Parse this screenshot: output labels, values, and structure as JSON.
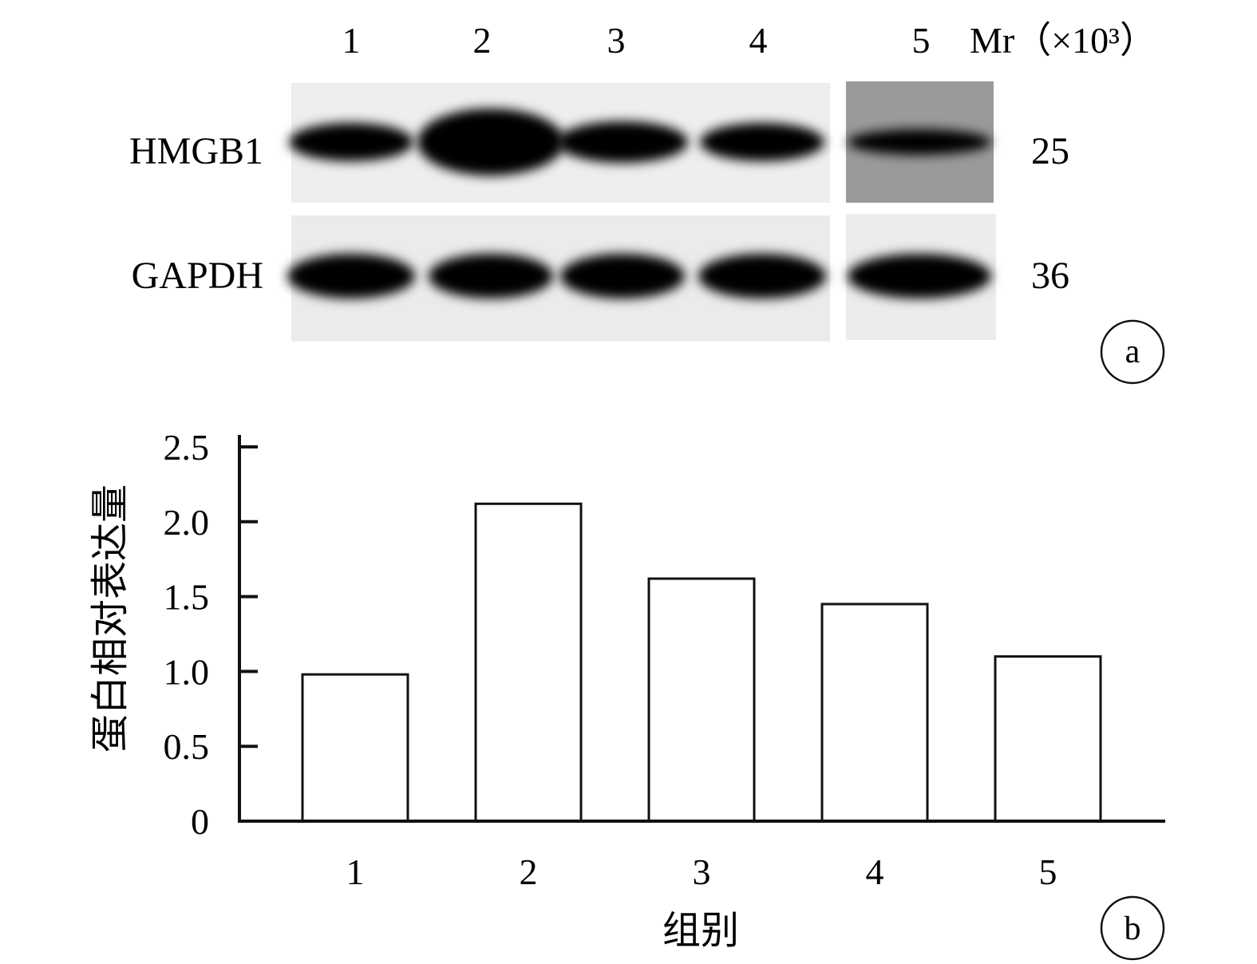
{
  "panel_a": {
    "lane_labels": [
      "1",
      "2",
      "3",
      "4",
      "5"
    ],
    "mr_label": "Mr（×10³）",
    "rows": [
      {
        "label": "HMGB1",
        "mr": "25",
        "band_intensity": [
          0.95,
          1.0,
          0.92,
          0.9,
          0.85
        ]
      },
      {
        "label": "GAPDH",
        "mr": "36",
        "band_intensity": [
          0.95,
          0.95,
          0.95,
          0.95,
          0.98
        ]
      }
    ],
    "panel_tag": "a"
  },
  "chart_data": {
    "type": "bar",
    "categories": [
      "1",
      "2",
      "3",
      "4",
      "5"
    ],
    "values": [
      0.98,
      2.12,
      1.62,
      1.45,
      1.1
    ],
    "ylabel": "蛋白相对表达量",
    "xlabel": "组别",
    "ylim": [
      0,
      2.5
    ],
    "yticks": [
      0,
      0.5,
      1.0,
      1.5,
      2.0,
      2.5
    ],
    "ytick_labels": [
      "0",
      "0.5",
      "1.0",
      "1.5",
      "2.0",
      "2.5"
    ],
    "bar_fill": "#ffffff",
    "bar_stroke": "#111111",
    "grid": false,
    "panel_tag": "b"
  }
}
